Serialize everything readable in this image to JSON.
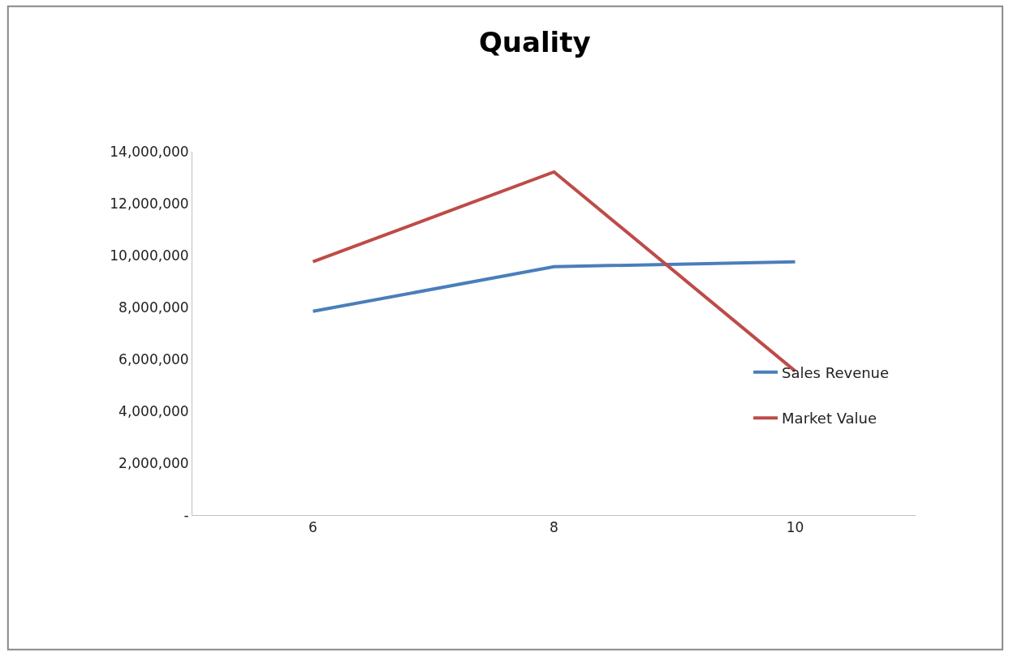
{
  "chart_data": {
    "type": "line",
    "title": "Quality",
    "categories": [
      "6",
      "8",
      "10"
    ],
    "series": [
      {
        "name": "Sales Revenue",
        "color": "#4a7ebb",
        "values": [
          7850000,
          9570000,
          9760000
        ]
      },
      {
        "name": "Market Value",
        "color": "#be4b48",
        "values": [
          9760000,
          13220000,
          5550000
        ]
      }
    ],
    "ylim": [
      0,
      14000000
    ],
    "yticks": [
      {
        "value": 0,
        "label": "-"
      },
      {
        "value": 2000000,
        "label": "2,000,000"
      },
      {
        "value": 4000000,
        "label": "4,000,000"
      },
      {
        "value": 6000000,
        "label": "6,000,000"
      },
      {
        "value": 8000000,
        "label": "8,000,000"
      },
      {
        "value": 10000000,
        "label": "10,000,000"
      },
      {
        "value": 12000000,
        "label": "12,000,000"
      },
      {
        "value": 14000000,
        "label": "14,000,000"
      }
    ],
    "legend": "right",
    "marker": "none",
    "line_style": "solid"
  }
}
